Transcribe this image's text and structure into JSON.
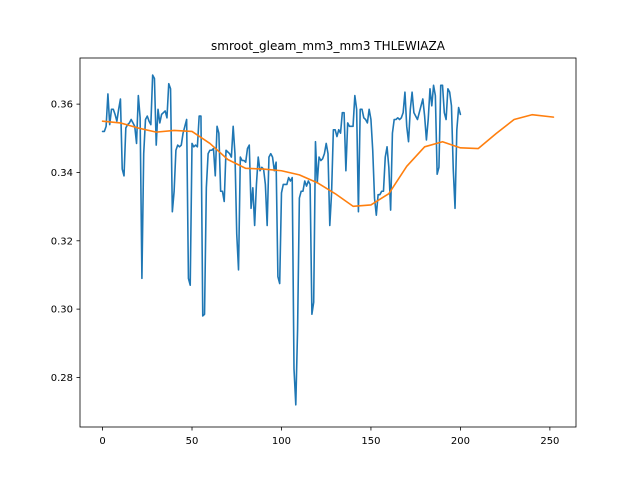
{
  "chart_data": {
    "type": "line",
    "title": "smroot_gleam_mm3_mm3 THLEWIAZA",
    "xlabel": "",
    "ylabel": "",
    "xlim": [
      -12.6,
      264.6
    ],
    "ylim": [
      0.2655,
      0.3735
    ],
    "xticks": [
      0,
      50,
      100,
      150,
      200,
      250
    ],
    "xtick_labels": [
      "0",
      "50",
      "100",
      "150",
      "200",
      "250"
    ],
    "yticks": [
      0.28,
      0.3,
      0.32,
      0.34,
      0.36
    ],
    "ytick_labels": [
      "0.28",
      "0.30",
      "0.32",
      "0.34",
      "0.36"
    ],
    "grid": false,
    "series": [
      {
        "color": "#1f77b4",
        "x_start": 0,
        "values": [
          0.352,
          0.352,
          0.3535,
          0.363,
          0.354,
          0.3585,
          0.3585,
          0.357,
          0.355,
          0.3585,
          0.3615,
          0.341,
          0.339,
          0.353,
          0.354,
          0.3545,
          0.3555,
          0.3545,
          0.3535,
          0.3485,
          0.3625,
          0.356,
          0.309,
          0.3455,
          0.3555,
          0.3565,
          0.355,
          0.354,
          0.3685,
          0.3675,
          0.348,
          0.3585,
          0.3545,
          0.357,
          0.3575,
          0.358,
          0.356,
          0.366,
          0.3645,
          0.3285,
          0.3345,
          0.3465,
          0.348,
          0.3475,
          0.348,
          0.3515,
          0.3535,
          0.3555,
          0.309,
          0.307,
          0.3485,
          0.3475,
          0.348,
          0.3475,
          0.3565,
          0.3565,
          0.298,
          0.2985,
          0.3355,
          0.3455,
          0.3465,
          0.3465,
          0.347,
          0.339,
          0.3535,
          0.3515,
          0.3345,
          0.3345,
          0.3315,
          0.3465,
          0.346,
          0.3455,
          0.3445,
          0.3535,
          0.3455,
          0.322,
          0.3115,
          0.3445,
          0.3435,
          0.3435,
          0.343,
          0.347,
          0.348,
          0.3295,
          0.3355,
          0.3245,
          0.3365,
          0.3445,
          0.3405,
          0.3415,
          0.341,
          0.3365,
          0.3245,
          0.3445,
          0.3455,
          0.3445,
          0.3405,
          0.343,
          0.3095,
          0.3075,
          0.334,
          0.3365,
          0.3365,
          0.3365,
          0.3385,
          0.3375,
          0.3385,
          0.2825,
          0.272,
          0.294,
          0.3325,
          0.3345,
          0.3345,
          0.3375,
          0.336,
          0.3375,
          0.3365,
          0.2985,
          0.302,
          0.349,
          0.337,
          0.3445,
          0.3435,
          0.344,
          0.3455,
          0.3485,
          0.3455,
          0.3245,
          0.334,
          0.3525,
          0.3525,
          0.3505,
          0.3525,
          0.3515,
          0.3575,
          0.3575,
          0.3405,
          0.3545,
          0.3535,
          0.3535,
          0.3535,
          0.3625,
          0.3585,
          0.3285,
          0.3585,
          0.3585,
          0.356,
          0.3555,
          0.3545,
          0.3585,
          0.3555,
          0.3465,
          0.3325,
          0.3275,
          0.3335,
          0.3335,
          0.3345,
          0.3345,
          0.3445,
          0.3475,
          0.3415,
          0.329,
          0.3515,
          0.3555,
          0.3555,
          0.356,
          0.3555,
          0.356,
          0.3575,
          0.3635,
          0.3535,
          0.349,
          0.3585,
          0.3635,
          0.3575,
          0.3565,
          0.3555,
          0.3575,
          0.3595,
          0.3615,
          0.3565,
          0.3495,
          0.3555,
          0.3645,
          0.3595,
          0.3655,
          0.3625,
          0.3395,
          0.3415,
          0.3655,
          0.3655,
          0.3575,
          0.3555,
          0.3645,
          0.3635,
          0.3595,
          0.341,
          0.3295,
          0.3525,
          0.359,
          0.357
        ]
      },
      {
        "color": "#ff7f0e",
        "x": [
          0,
          10,
          20,
          30,
          40,
          50,
          60,
          70,
          80,
          90,
          100,
          110,
          120,
          130,
          140,
          150,
          160,
          170,
          180,
          190,
          200,
          210,
          220,
          230,
          240,
          252
        ],
        "values": [
          0.355,
          0.3545,
          0.353,
          0.3518,
          0.3523,
          0.352,
          0.3485,
          0.3438,
          0.3412,
          0.341,
          0.3405,
          0.3393,
          0.337,
          0.3338,
          0.3301,
          0.3305,
          0.3338,
          0.3418,
          0.3475,
          0.349,
          0.3472,
          0.347,
          0.3514,
          0.3555,
          0.3569,
          0.3562
        ]
      }
    ]
  }
}
